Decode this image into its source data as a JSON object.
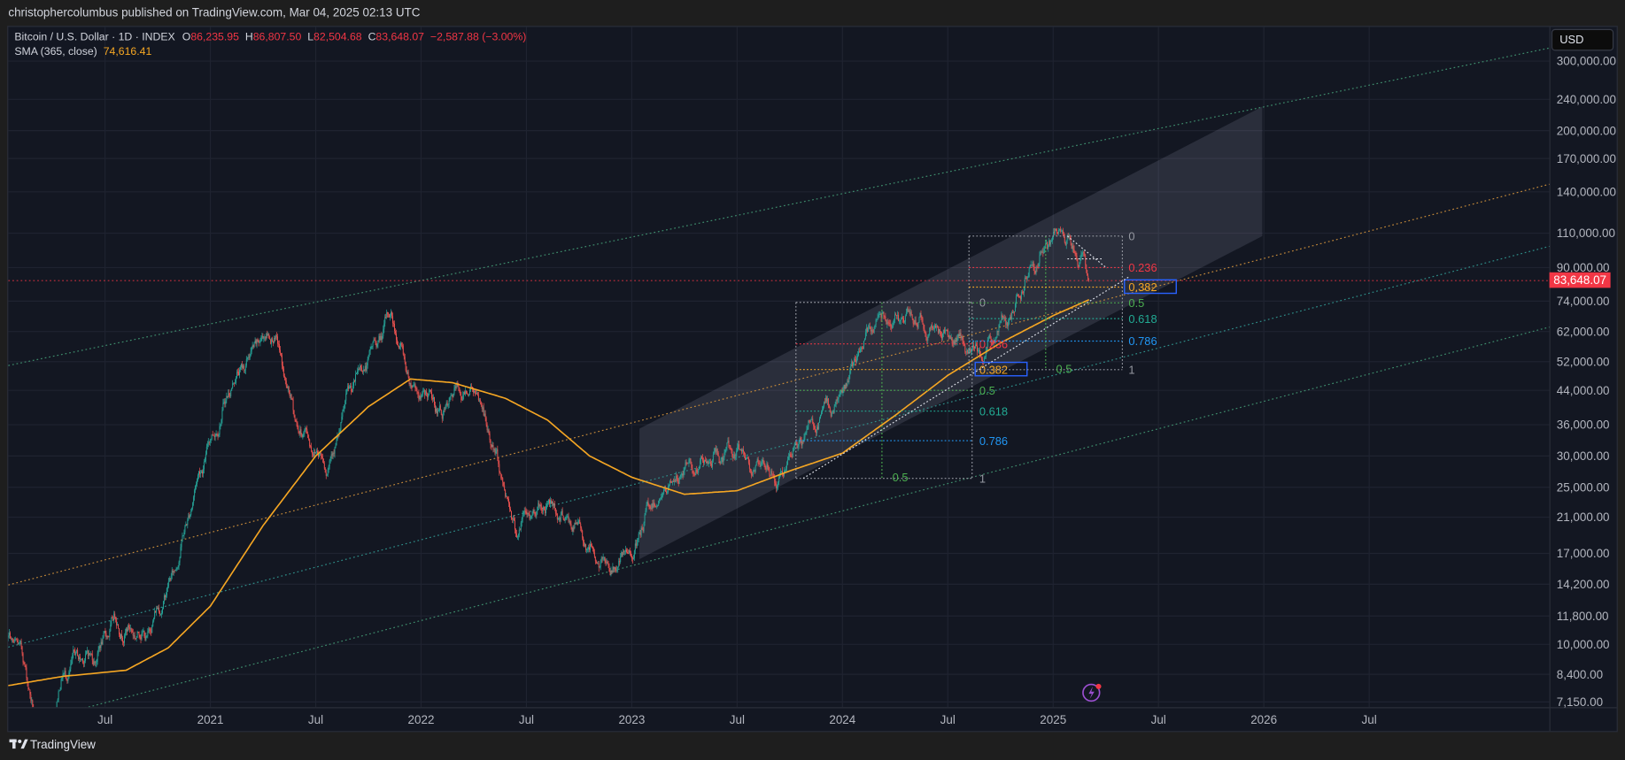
{
  "header": {
    "published": "christophercolumbus published on TradingView.com, Mar 04, 2025 02:13 UTC"
  },
  "legend": {
    "symbol": "Bitcoin / U.S. Dollar · 1D · INDEX",
    "o_label": "O",
    "open": "86,235.95",
    "h_label": "H",
    "high": "86,807.50",
    "l_label": "L",
    "low": "82,504.68",
    "c_label": "C",
    "close": "83,648.07",
    "change": "−2,587.88 (−3.00%)",
    "sma_label": "SMA (365, close)",
    "sma_value": "74,616.41"
  },
  "price_axis": {
    "currency_button": "USD",
    "last_price": "83,648.07"
  },
  "footer": {
    "brand": "TradingView"
  },
  "colors": {
    "up": "#26a69a",
    "down": "#ef5350",
    "sma": "#f5a623",
    "background": "#131722",
    "last_price": "#f23645",
    "fib_red": "#f23645",
    "fib_orange": "#f5a623",
    "fib_green": "#4caf50",
    "fib_teal": "#22ab94",
    "fib_blue": "#2196f3",
    "fib_gray": "#9598a1"
  },
  "chart_data": {
    "type": "candlestick",
    "title": "Bitcoin / U.S. Dollar · 1D · INDEX",
    "scale": "log",
    "ylim": [
      7150,
      300000
    ],
    "xlim": [
      2020.0,
      2026.9
    ],
    "yticks": [
      {
        "label": "300,000.00",
        "value": 300000
      },
      {
        "label": "240,000.00",
        "value": 240000
      },
      {
        "label": "200,000.00",
        "value": 200000
      },
      {
        "label": "170,000.00",
        "value": 170000
      },
      {
        "label": "140,000.00",
        "value": 140000
      },
      {
        "label": "110,000.00",
        "value": 110000
      },
      {
        "label": "90,000.00",
        "value": 90000
      },
      {
        "label": "74,000.00",
        "value": 74000
      },
      {
        "label": "62,000.00",
        "value": 62000
      },
      {
        "label": "52,000.00",
        "value": 52000
      },
      {
        "label": "44,000.00",
        "value": 44000
      },
      {
        "label": "36,000.00",
        "value": 36000
      },
      {
        "label": "30,000.00",
        "value": 30000
      },
      {
        "label": "25,000.00",
        "value": 25000
      },
      {
        "label": "21,000.00",
        "value": 21000
      },
      {
        "label": "17,000.00",
        "value": 17000
      },
      {
        "label": "14,200.00",
        "value": 14200
      },
      {
        "label": "11,800.00",
        "value": 11800
      },
      {
        "label": "10,000.00",
        "value": 10000
      },
      {
        "label": "8,400.00",
        "value": 8400
      },
      {
        "label": "7,150.00",
        "value": 7150
      }
    ],
    "xticks": [
      {
        "label": "Jul",
        "t": 2020.5
      },
      {
        "label": "2021",
        "t": 2021.0
      },
      {
        "label": "Jul",
        "t": 2021.5
      },
      {
        "label": "2022",
        "t": 2022.0
      },
      {
        "label": "Jul",
        "t": 2022.5
      },
      {
        "label": "2023",
        "t": 2023.0
      },
      {
        "label": "Jul",
        "t": 2023.5
      },
      {
        "label": "2024",
        "t": 2024.0
      },
      {
        "label": "Jul",
        "t": 2024.5
      },
      {
        "label": "2025",
        "t": 2025.0
      },
      {
        "label": "Jul",
        "t": 2025.5
      },
      {
        "label": "2026",
        "t": 2026.0
      },
      {
        "label": "Jul",
        "t": 2026.5
      }
    ],
    "price_path": [
      [
        2020.0,
        9000
      ],
      [
        2020.05,
        10200
      ],
      [
        2020.12,
        8700
      ],
      [
        2020.2,
        5000
      ],
      [
        2020.3,
        8800
      ],
      [
        2020.45,
        9400
      ],
      [
        2020.55,
        11500
      ],
      [
        2020.7,
        10700
      ],
      [
        2020.83,
        15500
      ],
      [
        2020.95,
        28000
      ],
      [
        2021.1,
        47000
      ],
      [
        2021.3,
        63000
      ],
      [
        2021.4,
        36000
      ],
      [
        2021.55,
        30000
      ],
      [
        2021.7,
        47000
      ],
      [
        2021.86,
        67000
      ],
      [
        2021.95,
        47000
      ],
      [
        2022.1,
        38000
      ],
      [
        2022.25,
        46000
      ],
      [
        2022.45,
        20000
      ],
      [
        2022.6,
        23500
      ],
      [
        2022.75,
        19500
      ],
      [
        2022.87,
        16000
      ],
      [
        2023.0,
        16600
      ],
      [
        2023.1,
        23000
      ],
      [
        2023.25,
        28000
      ],
      [
        2023.5,
        30500
      ],
      [
        2023.7,
        26000
      ],
      [
        2023.85,
        35000
      ],
      [
        2024.0,
        43000
      ],
      [
        2024.2,
        71000
      ],
      [
        2024.5,
        62000
      ],
      [
        2024.6,
        54000
      ],
      [
        2024.8,
        68000
      ],
      [
        2024.9,
        98000
      ],
      [
        2025.05,
        106000
      ],
      [
        2025.15,
        96000
      ],
      [
        2025.17,
        83648.07
      ]
    ],
    "sma_365": [
      [
        2020.0,
        7800
      ],
      [
        2020.3,
        8300
      ],
      [
        2020.6,
        8600
      ],
      [
        2020.8,
        9800
      ],
      [
        2021.0,
        12500
      ],
      [
        2021.25,
        20000
      ],
      [
        2021.5,
        30000
      ],
      [
        2021.75,
        40000
      ],
      [
        2021.95,
        47000
      ],
      [
        2022.15,
        46000
      ],
      [
        2022.4,
        42000
      ],
      [
        2022.6,
        37000
      ],
      [
        2022.8,
        30000
      ],
      [
        2023.0,
        26500
      ],
      [
        2023.25,
        24000
      ],
      [
        2023.5,
        24500
      ],
      [
        2023.75,
        27500
      ],
      [
        2024.0,
        30500
      ],
      [
        2024.25,
        38000
      ],
      [
        2024.5,
        48000
      ],
      [
        2024.75,
        58000
      ],
      [
        2025.0,
        68000
      ],
      [
        2025.17,
        74616.41
      ]
    ],
    "last_price": 83648.07,
    "fib_retracements": [
      {
        "name": "fib-2023-2024",
        "levels": [
          {
            "ratio": "0",
            "color": "fib_gray"
          },
          {
            "ratio": "0.236",
            "color": "fib_red"
          },
          {
            "ratio": "0.382",
            "color": "fib_orange"
          },
          {
            "ratio": "0.5",
            "color": "fib_green"
          },
          {
            "ratio": "0.618",
            "color": "fib_teal"
          },
          {
            "ratio": "0.786",
            "color": "fib_blue"
          },
          {
            "ratio": "1",
            "color": "fib_gray"
          }
        ],
        "time_fib_label": "0.5"
      },
      {
        "name": "fib-2024-2025",
        "levels": [
          {
            "ratio": "0",
            "color": "fib_gray"
          },
          {
            "ratio": "0.236",
            "color": "fib_red"
          },
          {
            "ratio": "0.382",
            "color": "fib_orange"
          },
          {
            "ratio": "0.5",
            "color": "fib_green"
          },
          {
            "ratio": "0.618",
            "color": "fib_teal"
          },
          {
            "ratio": "0.786",
            "color": "fib_blue"
          },
          {
            "ratio": "1",
            "color": "fib_gray"
          }
        ],
        "time_fib_label": "0.5"
      }
    ]
  }
}
